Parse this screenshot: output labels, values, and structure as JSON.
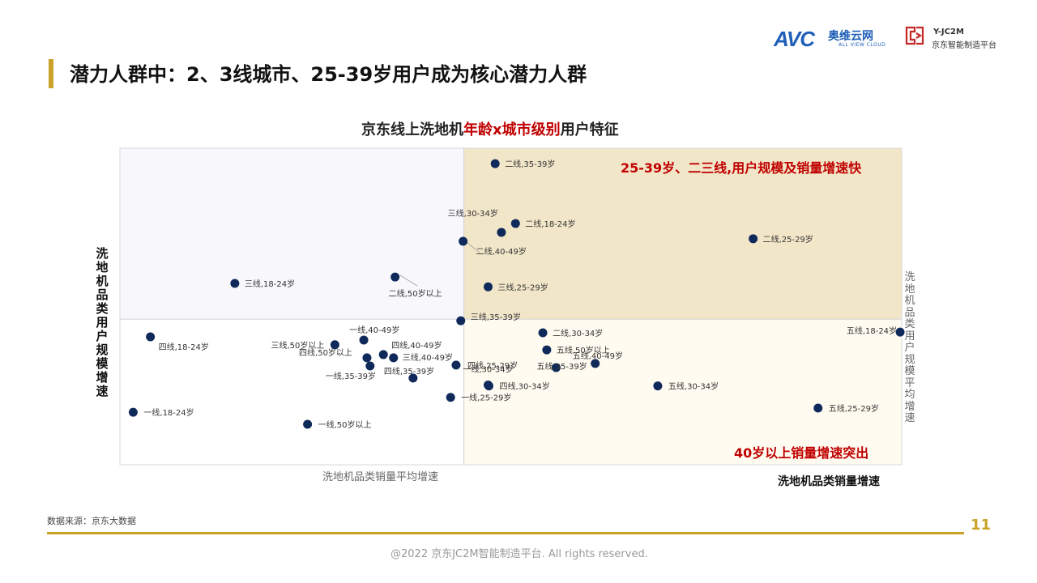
{
  "header": {
    "title": "潜力人群中：2、3线城市、25-39岁用户成为核心潜力人群",
    "logo_avc": "AVC",
    "logo_avc_cn": "奥维云网",
    "logo_avc_en": "ALL VIEW CLOUD",
    "logo_jd_code": "Y-JC2M",
    "logo_jd_name": "京东智能制造平台",
    "accent_color": "#c9a227"
  },
  "chart_data": {
    "type": "scatter",
    "title_prefix": "京东线上洗地机",
    "title_highlight": "年龄x城市级别",
    "title_suffix": "用户特征",
    "xlabel": "洗地机品类销量增速",
    "ylabel": "洗地机品类用户规模增速",
    "x_avg_label": "洗地机品类销量平均增速",
    "y_avg_label": "洗地机品类用户规模平均增速",
    "annotation_top_right": "25-39岁、二三线,用户规模及销量增速快",
    "annotation_bottom_right": "40岁以上销量增速突出",
    "xlim": [
      0,
      100
    ],
    "ylim": [
      0,
      100
    ],
    "x_avg": 44,
    "y_avg": 46,
    "quadrant_colors": {
      "top_left": "#f8f8fc",
      "top_right": "#f2e6c9",
      "bottom_right": "#fffbf0",
      "bottom_left": "#ffffff"
    },
    "point_color": "#0f2a5a",
    "points": [
      {
        "label": "二线,35-39岁",
        "x": 48.0,
        "y": 95.1
      },
      {
        "label": "三线,30-34岁",
        "x": 48.8,
        "y": 73.4
      },
      {
        "label": "二线,18-24岁",
        "x": 50.6,
        "y": 76.2
      },
      {
        "label": "二线,25-29岁",
        "x": 81.0,
        "y": 71.4
      },
      {
        "label": "二线,40-49岁",
        "x": 43.9,
        "y": 70.6
      },
      {
        "label": "三线,18-24岁",
        "x": 14.7,
        "y": 57.3
      },
      {
        "label": "二线,50岁以上",
        "x": 35.2,
        "y": 59.3
      },
      {
        "label": "三线,25-29岁",
        "x": 47.1,
        "y": 56.2
      },
      {
        "label": "三线,35-39岁",
        "x": 43.6,
        "y": 45.5
      },
      {
        "label": "五线,18-24岁",
        "x": 99.8,
        "y": 41.9
      },
      {
        "label": "一线,40-49岁",
        "x": 31.2,
        "y": 39.4
      },
      {
        "label": "二线,30-34岁",
        "x": 54.1,
        "y": 41.7
      },
      {
        "label": "四线,18-24岁",
        "x": 3.9,
        "y": 40.4
      },
      {
        "label": "三线,50岁以上",
        "x": 27.5,
        "y": 37.9
      },
      {
        "label": "四线,40-49岁",
        "x": 33.7,
        "y": 34.8
      },
      {
        "label": "四线,50岁以上",
        "x": 31.6,
        "y": 33.8
      },
      {
        "label": "三线,40-49岁",
        "x": 35.0,
        "y": 33.8
      },
      {
        "label": "五线,50岁以上",
        "x": 54.6,
        "y": 36.3
      },
      {
        "label": "五线,40-49岁",
        "x": 60.8,
        "y": 32.0
      },
      {
        "label": "四线,25-29岁",
        "x": 43.0,
        "y": 31.5
      },
      {
        "label": "五线,35-39岁",
        "x": 55.8,
        "y": 30.7
      },
      {
        "label": "一线,35-39岁",
        "x": 32.0,
        "y": 31.2
      },
      {
        "label": "四线,35-39岁",
        "x": 37.5,
        "y": 27.4
      },
      {
        "label": "一线,30-34岁",
        "x": 47.1,
        "y": 25.2
      },
      {
        "label": "四线,30-34岁",
        "x": 47.2,
        "y": 24.9
      },
      {
        "label": "五线,30-34岁",
        "x": 68.8,
        "y": 24.9
      },
      {
        "label": "一线,25-29岁",
        "x": 42.3,
        "y": 21.3
      },
      {
        "label": "五线,25-29岁",
        "x": 89.3,
        "y": 17.9
      },
      {
        "label": "一线,18-24岁",
        "x": 1.7,
        "y": 16.6
      },
      {
        "label": "一线,50岁以上",
        "x": 24.0,
        "y": 12.8
      }
    ]
  },
  "footer": {
    "source": "数据来源：京东大数据",
    "page_number": "11",
    "copyright": "@2022 京东JC2M智能制造平台. All rights reserved."
  }
}
